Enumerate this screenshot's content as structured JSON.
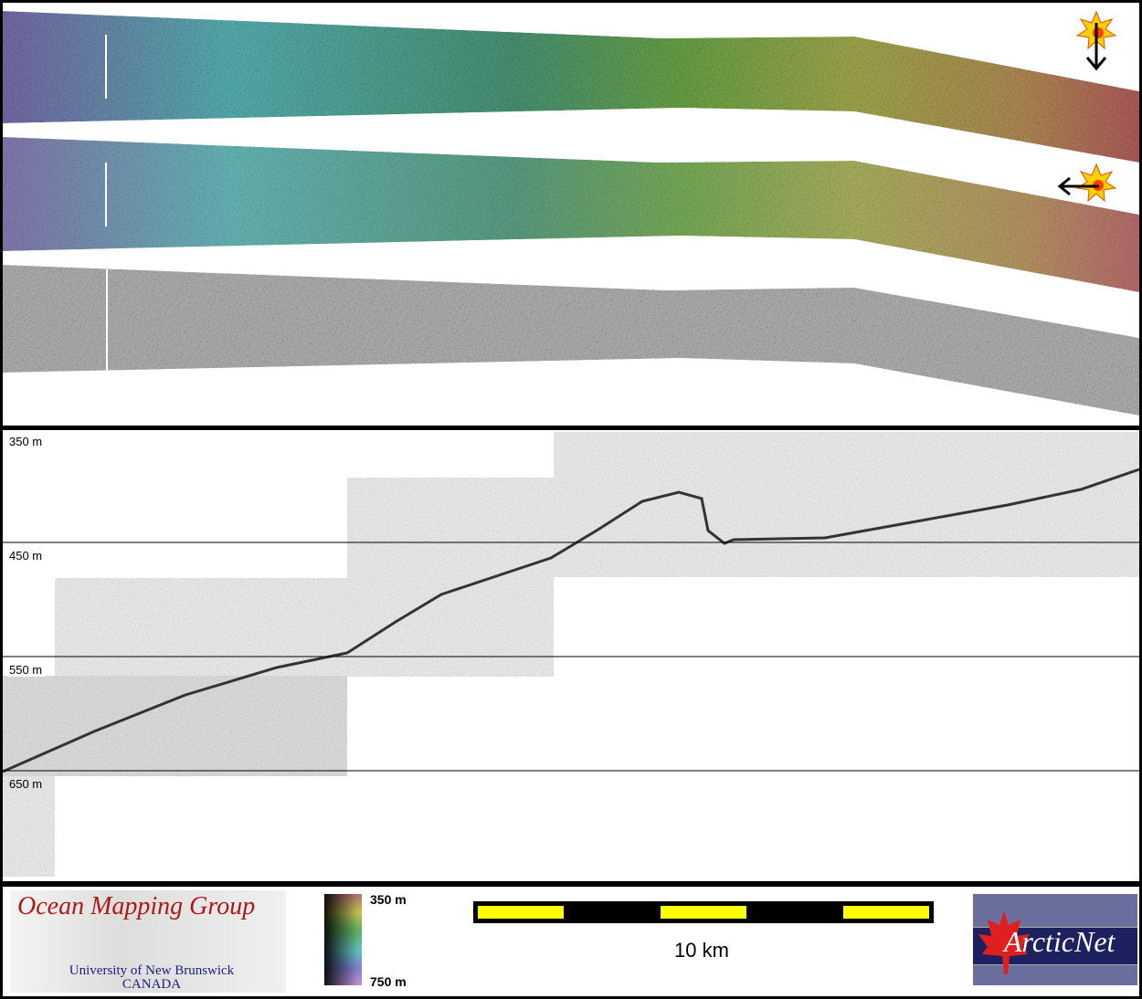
{
  "depth_profile": {
    "depth_labels": [
      "350 m",
      "450 m",
      "550 m",
      "650 m"
    ]
  },
  "sun_illumination_icons": [
    {
      "name": "sun-icon",
      "arrow": "down"
    },
    {
      "name": "sun-icon",
      "arrow": "left"
    }
  ],
  "legend": {
    "ocean_mapping_group": {
      "title": "Ocean Mapping Group",
      "line1": "University of New Brunswick",
      "line2": "CANADA"
    },
    "colorbar": {
      "top_label": "350 m",
      "bottom_label": "750 m",
      "colors": [
        "#b07070",
        "#c0c050",
        "#60b060",
        "#60c0c0",
        "#8080d0",
        "#c090d0"
      ]
    },
    "scale_bar": {
      "label": "10 km",
      "color": "#ffff00"
    },
    "arcticnet": {
      "logo_text": "ArcticNet"
    }
  }
}
